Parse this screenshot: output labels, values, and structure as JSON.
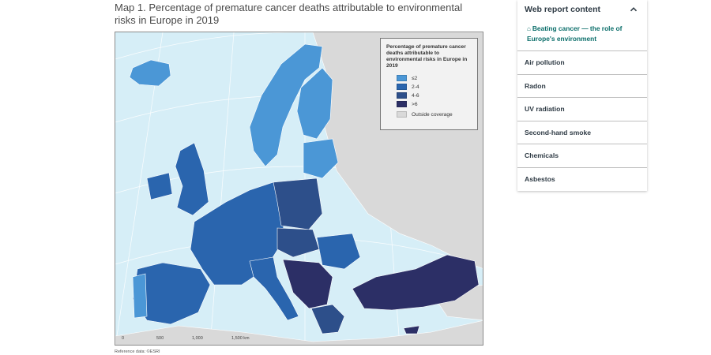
{
  "map": {
    "title": "Map 1. Percentage of premature cancer deaths attributable to environmental risks in Europe in 2019",
    "reference": "Reference data: ©ESRI",
    "scale_labels": [
      "0",
      "500",
      "1,000",
      "1,500 km"
    ],
    "legend": {
      "title": "Percentage of premature cancer deaths attributable to environmental risks in Europe in 2019",
      "items": [
        {
          "label": "≤2",
          "color": "#4b97d6"
        },
        {
          "label": "2-4",
          "color": "#2a65ae"
        },
        {
          "label": "4-6",
          "color": "#2d4f8a"
        },
        {
          "label": ">6",
          "color": "#2c2f66"
        },
        {
          "label": "Outside coverage",
          "color": "#d9d9d9"
        }
      ]
    }
  },
  "sidebar": {
    "title": "Web report content",
    "toggle_icon": "chevron-up-icon",
    "current_icon": "home-icon",
    "current": "Beating cancer — the role of Europe's environment",
    "items": [
      "Air pollution",
      "Radon",
      "UV radiation",
      "Second-hand smoke",
      "Chemicals",
      "Asbestos"
    ]
  },
  "colors": {
    "sea": "#d6eef7",
    "outside": "#d9d9d9",
    "accent": "#0b6e6a"
  }
}
